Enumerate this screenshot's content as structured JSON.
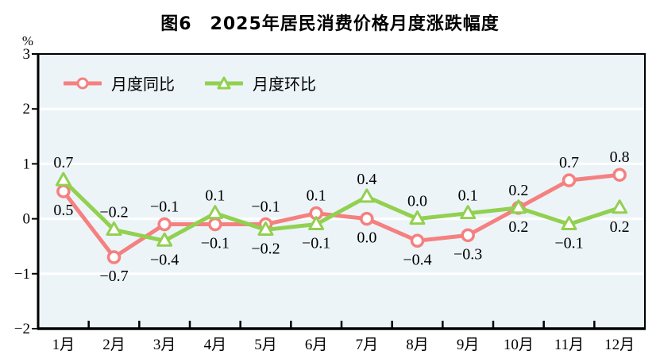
{
  "title": "图6　2025年居民消费价格月度涨跌幅度",
  "unit_label": "%",
  "chart_data": {
    "type": "line",
    "categories": [
      "1月",
      "2月",
      "3月",
      "4月",
      "5月",
      "6月",
      "7月",
      "8月",
      "9月",
      "10月",
      "11月",
      "12月"
    ],
    "series": [
      {
        "name": "月度同比",
        "marker": "circle",
        "color": "#f58080",
        "values": [
          0.5,
          -0.7,
          -0.1,
          -0.1,
          -0.1,
          0.1,
          0.0,
          -0.4,
          -0.3,
          0.2,
          0.7,
          0.8
        ],
        "label_pos": [
          "below",
          "below",
          "above",
          "below",
          "above",
          "above",
          "below",
          "below",
          "below",
          "above",
          "above",
          "above"
        ]
      },
      {
        "name": "月度环比",
        "marker": "triangle",
        "color": "#92d050",
        "values": [
          0.7,
          -0.2,
          -0.4,
          0.1,
          -0.2,
          -0.1,
          0.4,
          0.0,
          0.1,
          0.2,
          -0.1,
          0.2
        ],
        "label_pos": [
          "above",
          "above",
          "below",
          "above",
          "below",
          "below",
          "above",
          "above",
          "above",
          "below",
          "below",
          "below"
        ]
      }
    ],
    "ylim": [
      -2,
      3
    ],
    "yticks": [
      3,
      2,
      1,
      0,
      -1,
      -2
    ],
    "grid": true,
    "legend_position": "top-left",
    "plot_bg": "#ecf4f8",
    "grid_color": "#ffffff",
    "axis_color": "#000000",
    "marker_fill": "#ffffff"
  }
}
